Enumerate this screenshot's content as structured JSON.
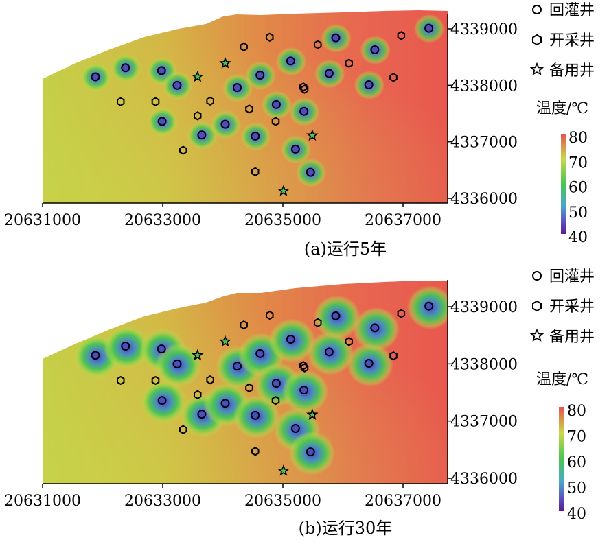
{
  "legend": {
    "injection": "回灌井",
    "production": "开采井",
    "standby": "备用井"
  },
  "colorbar": {
    "title": "温度/℃",
    "ticks": [
      "80",
      "70",
      "60",
      "50",
      "40"
    ],
    "range": [
      40,
      80
    ],
    "colors": [
      "#e8524f",
      "#c9d84a",
      "#48c653",
      "#4aa8c8",
      "#5a4fc0",
      "#5b1c8e"
    ]
  },
  "panels": [
    {
      "caption": "(a)运行5年",
      "plume_scale": 0.35,
      "x_ticks": [
        "20631000",
        "20633000",
        "20635000",
        "20637000"
      ],
      "y_ticks": [
        "4339000",
        "4338000",
        "4337000",
        "4336000"
      ]
    },
    {
      "caption": "(b)运行30年",
      "plume_scale": 1.0,
      "x_ticks": [
        "20631000",
        "20633000",
        "20635000",
        "20637000"
      ],
      "y_ticks": [
        "4339000",
        "4338000",
        "4337000",
        "4336000"
      ]
    }
  ],
  "chart_data": {
    "type": "heatmap",
    "x_range": [
      20631000,
      20637800
    ],
    "y_range": [
      4335900,
      4339450
    ],
    "injection_wells": [
      [
        20631880,
        4338150
      ],
      [
        20632380,
        4338310
      ],
      [
        20632980,
        4338260
      ],
      [
        20633240,
        4338000
      ],
      [
        20632990,
        4337360
      ],
      [
        20633650,
        4337120
      ],
      [
        20634040,
        4337310
      ],
      [
        20634240,
        4337960
      ],
      [
        20634620,
        4338180
      ],
      [
        20634540,
        4337100
      ],
      [
        20634890,
        4337660
      ],
      [
        20635130,
        4338430
      ],
      [
        20635350,
        4337540
      ],
      [
        20635210,
        4336870
      ],
      [
        20635460,
        4336460
      ],
      [
        20635770,
        4338210
      ],
      [
        20635880,
        4338840
      ],
      [
        20636430,
        4338010
      ],
      [
        20636530,
        4338630
      ],
      [
        20637430,
        4339010
      ]
    ],
    "production_wells": [
      [
        20632300,
        4337710
      ],
      [
        20632880,
        4337710
      ],
      [
        20633340,
        4336850
      ],
      [
        20633580,
        4337460
      ],
      [
        20633790,
        4337720
      ],
      [
        20634350,
        4338680
      ],
      [
        20634440,
        4337580
      ],
      [
        20634540,
        4336470
      ],
      [
        20634880,
        4337360
      ],
      [
        20634780,
        4338850
      ],
      [
        20635340,
        4337970
      ],
      [
        20635360,
        4337930
      ],
      [
        20635580,
        4338720
      ],
      [
        20636100,
        4338390
      ],
      [
        20636840,
        4338140
      ],
      [
        20636970,
        4338880
      ]
    ],
    "standby_wells": [
      [
        20633580,
        4338150
      ],
      [
        20634040,
        4338390
      ],
      [
        20635490,
        4337110
      ],
      [
        20635010,
        4336130
      ]
    ]
  }
}
